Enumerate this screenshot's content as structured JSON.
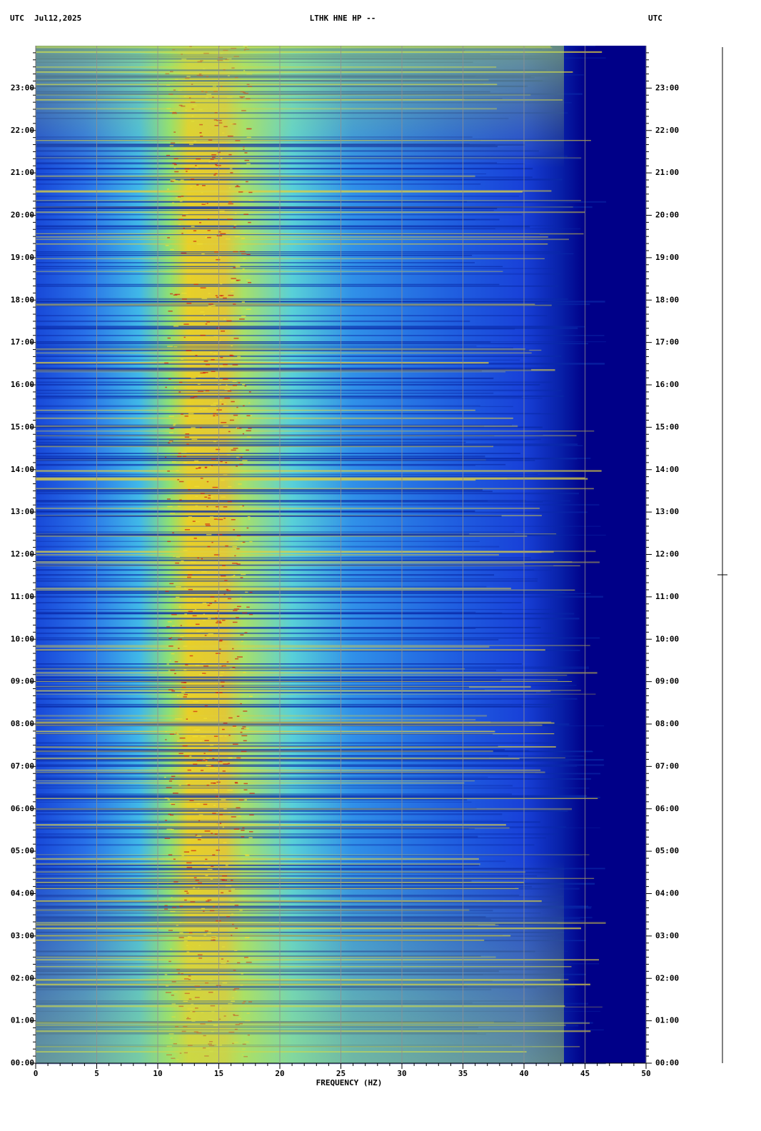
{
  "chart_data": {
    "type": "spectrogram",
    "title": "LTHK HNE HP --",
    "timezone_left": "UTC",
    "date": "Jul12,2025",
    "timezone_right": "UTC",
    "xlabel": "FREQUENCY (HZ)",
    "xlim": [
      0,
      50
    ],
    "xticks": [
      0,
      5,
      10,
      15,
      20,
      25,
      30,
      35,
      40,
      45,
      50
    ],
    "ylim": [
      0,
      24
    ],
    "yticks": [
      {
        "value": 0,
        "label": "00:00"
      },
      {
        "value": 1,
        "label": "01:00"
      },
      {
        "value": 2,
        "label": "02:00"
      },
      {
        "value": 3,
        "label": "03:00"
      },
      {
        "value": 4,
        "label": "04:00"
      },
      {
        "value": 5,
        "label": "05:00"
      },
      {
        "value": 6,
        "label": "06:00"
      },
      {
        "value": 7,
        "label": "07:00"
      },
      {
        "value": 8,
        "label": "08:00"
      },
      {
        "value": 9,
        "label": "09:00"
      },
      {
        "value": 10,
        "label": "10:00"
      },
      {
        "value": 11,
        "label": "11:00"
      },
      {
        "value": 12,
        "label": "12:00"
      },
      {
        "value": 13,
        "label": "13:00"
      },
      {
        "value": 14,
        "label": "14:00"
      },
      {
        "value": 15,
        "label": "15:00"
      },
      {
        "value": 16,
        "label": "16:00"
      },
      {
        "value": 17,
        "label": "17:00"
      },
      {
        "value": 18,
        "label": "18:00"
      },
      {
        "value": 19,
        "label": "19:00"
      },
      {
        "value": 20,
        "label": "20:00"
      },
      {
        "value": 21,
        "label": "21:00"
      },
      {
        "value": 22,
        "label": "22:00"
      },
      {
        "value": 23,
        "label": "23:00"
      }
    ],
    "grid": true
  }
}
